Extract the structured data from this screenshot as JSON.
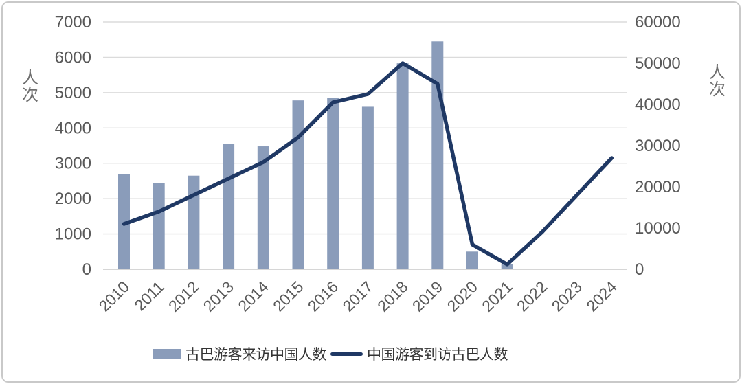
{
  "colors": {
    "bar": "#8A9CBA",
    "line": "#1F3864",
    "grid": "#DBDBDB",
    "axis_baseline": "#C9C9C9",
    "axis_text": "#595959",
    "card_border": "#C9C9C9",
    "legend_text": "#333333"
  },
  "chart_data": {
    "type": "bar",
    "title": "",
    "categories": [
      "2010",
      "2011",
      "2012",
      "2013",
      "2014",
      "2015",
      "2016",
      "2017",
      "2018",
      "2019",
      "2020",
      "2021",
      "2022",
      "2023",
      "2024"
    ],
    "series": [
      {
        "name": "古巴游客来访中国人数",
        "kind": "bar",
        "axis": "left",
        "values": [
          2700,
          2450,
          2650,
          3550,
          3480,
          4780,
          4850,
          4600,
          5830,
          6450,
          500,
          150,
          null,
          null,
          null
        ]
      },
      {
        "name": "中国游客到访古巴人数",
        "kind": "line",
        "axis": "right",
        "values": [
          11000,
          14000,
          18000,
          22000,
          26000,
          32000,
          40500,
          42500,
          50000,
          45000,
          6000,
          1200,
          9000,
          18000,
          27000
        ]
      }
    ],
    "left_axis": {
      "label": "人次",
      "min": 0,
      "max": 7000,
      "tick_interval": 1000
    },
    "right_axis": {
      "label": "人次",
      "min": 0,
      "max": 60000,
      "tick_interval": 10000
    },
    "legend_position": "bottom",
    "grid": true
  }
}
